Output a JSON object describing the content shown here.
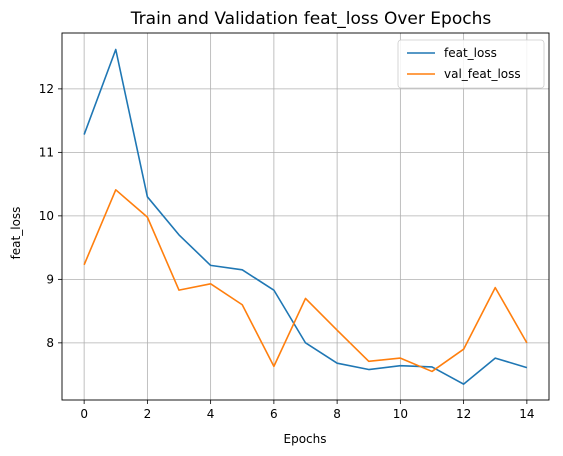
{
  "chart_data": {
    "type": "line",
    "title": "Train and Validation feat_loss Over Epochs",
    "xlabel": "Epochs",
    "ylabel": "feat_loss",
    "x": [
      0,
      1,
      2,
      3,
      4,
      5,
      6,
      7,
      8,
      9,
      10,
      11,
      12,
      13,
      14
    ],
    "x_ticks": [
      0,
      2,
      4,
      6,
      8,
      10,
      12,
      14
    ],
    "y_ticks": [
      8,
      9,
      10,
      11,
      12
    ],
    "xlim": [
      -0.7,
      14.7
    ],
    "ylim": [
      7.1,
      12.88
    ],
    "grid": true,
    "legend_position": "top-right",
    "series": [
      {
        "name": "feat_loss",
        "color": "#1f77b4",
        "values": [
          11.28,
          12.62,
          10.3,
          9.7,
          9.22,
          9.15,
          8.83,
          8.0,
          7.68,
          7.58,
          7.64,
          7.62,
          7.35,
          7.76,
          7.61
        ]
      },
      {
        "name": "val_feat_loss",
        "color": "#ff7f0e",
        "values": [
          9.23,
          10.41,
          9.98,
          8.83,
          8.93,
          8.6,
          7.63,
          8.7,
          8.2,
          7.71,
          7.76,
          7.55,
          7.9,
          8.87,
          8.0
        ]
      }
    ]
  }
}
